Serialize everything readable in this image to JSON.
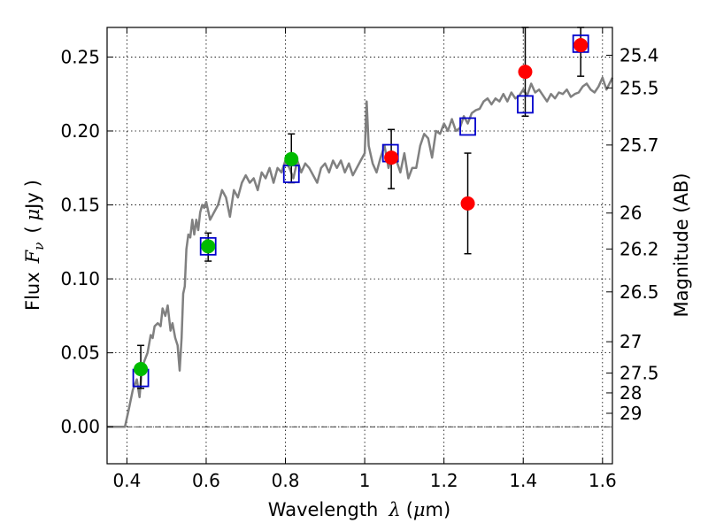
{
  "chart_data": {
    "type": "scatter",
    "title": "",
    "xlabel": "Wavelength",
    "xlabel_symbol": "λ",
    "xlabel_unit_open": "(",
    "xlabel_unit_mu": "μ",
    "xlabel_unit_rest": "m)",
    "ylabel": "Flux",
    "ylabel_symbol": "F",
    "ylabel_subscript": "ν",
    "ylabel_unit_open": "(",
    "ylabel_unit_mu": "μ",
    "ylabel_unit_rest": "Jy",
    "ylabel_unit_close": ")",
    "right_ylabel": "Magnitude (AB)",
    "xlim": [
      0.35,
      1.625
    ],
    "ylim": [
      -0.025,
      0.27
    ],
    "grid": true,
    "x_ticks": [
      0.4,
      0.6,
      0.8,
      1.0,
      1.2,
      1.4,
      1.6
    ],
    "x_tick_labels": [
      "0.4",
      "0.6",
      "0.8",
      "1",
      "1.2",
      "1.4",
      "1.6"
    ],
    "y_ticks": [
      0.0,
      0.05,
      0.1,
      0.15,
      0.2,
      0.25
    ],
    "y_tick_labels": [
      "0.00",
      "0.05",
      "0.10",
      "0.15",
      "0.20",
      "0.25"
    ],
    "magnitude_ticks": [
      {
        "label": "25.4",
        "flux": 0.2512
      },
      {
        "label": "25.5",
        "flux": 0.2291
      },
      {
        "label": "25.7",
        "flux": 0.1905
      },
      {
        "label": "26",
        "flux": 0.1445
      },
      {
        "label": "26.2",
        "flux": 0.1202
      },
      {
        "label": "26.5",
        "flux": 0.0912
      },
      {
        "label": "27",
        "flux": 0.0575
      },
      {
        "label": "27.5",
        "flux": 0.0363
      },
      {
        "label": "28",
        "flux": 0.0229
      },
      {
        "label": "29",
        "flux": 0.0091
      }
    ],
    "zero_line": 0.0,
    "colors": {
      "model": "#808080",
      "green": "#00bb00",
      "red": "#ff0000",
      "box": "#0000cc",
      "errorbar": "#000000",
      "grid": "#000000"
    },
    "series": [
      {
        "name": "model spectrum",
        "kind": "line",
        "x": [
          0.35,
          0.395,
          0.405,
          0.415,
          0.425,
          0.432,
          0.438,
          0.445,
          0.452,
          0.46,
          0.465,
          0.47,
          0.478,
          0.485,
          0.49,
          0.497,
          0.503,
          0.51,
          0.515,
          0.522,
          0.528,
          0.533,
          0.538,
          0.542,
          0.546,
          0.55,
          0.555,
          0.56,
          0.565,
          0.57,
          0.575,
          0.58,
          0.585,
          0.59,
          0.595,
          0.6,
          0.61,
          0.62,
          0.63,
          0.64,
          0.65,
          0.66,
          0.67,
          0.68,
          0.69,
          0.7,
          0.71,
          0.72,
          0.73,
          0.74,
          0.75,
          0.76,
          0.77,
          0.78,
          0.79,
          0.8,
          0.81,
          0.82,
          0.83,
          0.84,
          0.85,
          0.86,
          0.87,
          0.88,
          0.89,
          0.9,
          0.91,
          0.92,
          0.93,
          0.94,
          0.95,
          0.96,
          0.97,
          0.98,
          0.99,
          1.0,
          1.005,
          1.01,
          1.02,
          1.03,
          1.04,
          1.05,
          1.06,
          1.07,
          1.08,
          1.09,
          1.1,
          1.11,
          1.12,
          1.13,
          1.14,
          1.15,
          1.16,
          1.17,
          1.18,
          1.19,
          1.2,
          1.21,
          1.22,
          1.23,
          1.24,
          1.25,
          1.26,
          1.27,
          1.28,
          1.29,
          1.3,
          1.31,
          1.32,
          1.33,
          1.34,
          1.35,
          1.36,
          1.37,
          1.38,
          1.39,
          1.4,
          1.41,
          1.42,
          1.43,
          1.44,
          1.45,
          1.46,
          1.47,
          1.48,
          1.49,
          1.5,
          1.51,
          1.52,
          1.53,
          1.54,
          1.55,
          1.56,
          1.57,
          1.58,
          1.59,
          1.6,
          1.61,
          1.625
        ],
        "y": [
          0.0,
          0.0,
          0.012,
          0.025,
          0.032,
          0.02,
          0.04,
          0.045,
          0.05,
          0.062,
          0.06,
          0.068,
          0.07,
          0.068,
          0.08,
          0.075,
          0.082,
          0.065,
          0.07,
          0.06,
          0.055,
          0.038,
          0.06,
          0.09,
          0.095,
          0.12,
          0.13,
          0.128,
          0.14,
          0.13,
          0.14,
          0.133,
          0.145,
          0.15,
          0.148,
          0.152,
          0.14,
          0.145,
          0.15,
          0.16,
          0.155,
          0.142,
          0.16,
          0.155,
          0.165,
          0.17,
          0.165,
          0.168,
          0.16,
          0.172,
          0.168,
          0.175,
          0.165,
          0.175,
          0.172,
          0.18,
          0.175,
          0.168,
          0.18,
          0.172,
          0.178,
          0.175,
          0.17,
          0.165,
          0.175,
          0.178,
          0.172,
          0.18,
          0.175,
          0.18,
          0.172,
          0.178,
          0.17,
          0.175,
          0.18,
          0.185,
          0.22,
          0.19,
          0.178,
          0.172,
          0.182,
          0.19,
          0.175,
          0.185,
          0.18,
          0.172,
          0.185,
          0.168,
          0.175,
          0.175,
          0.19,
          0.198,
          0.195,
          0.182,
          0.2,
          0.198,
          0.205,
          0.2,
          0.208,
          0.2,
          0.202,
          0.21,
          0.205,
          0.212,
          0.214,
          0.215,
          0.22,
          0.222,
          0.218,
          0.222,
          0.22,
          0.225,
          0.22,
          0.226,
          0.222,
          0.224,
          0.228,
          0.224,
          0.232,
          0.226,
          0.228,
          0.224,
          0.22,
          0.225,
          0.222,
          0.226,
          0.225,
          0.228,
          0.223,
          0.225,
          0.226,
          0.23,
          0.232,
          0.228,
          0.226,
          0.23,
          0.236,
          0.228,
          0.236
        ]
      },
      {
        "name": "green photometry",
        "kind": "points",
        "x": [
          0.435,
          0.605,
          0.815
        ],
        "y": [
          0.039,
          0.122,
          0.181
        ],
        "err_low": [
          0.026,
          0.112,
          0.165
        ],
        "err_high": [
          0.055,
          0.131,
          0.198
        ]
      },
      {
        "name": "red photometry",
        "kind": "points",
        "x": [
          1.067,
          1.26,
          1.405,
          1.545
        ],
        "y": [
          0.182,
          0.151,
          0.24,
          0.258
        ],
        "err_low": [
          0.161,
          0.117,
          0.21,
          0.237
        ],
        "err_high": [
          0.201,
          0.185,
          0.27,
          0.27
        ]
      },
      {
        "name": "model synthetic photometry",
        "kind": "boxes",
        "x": [
          0.435,
          0.605,
          0.815,
          1.065,
          1.26,
          1.405,
          1.545
        ],
        "y": [
          0.033,
          0.122,
          0.171,
          0.185,
          0.203,
          0.218,
          0.259
        ]
      }
    ]
  }
}
